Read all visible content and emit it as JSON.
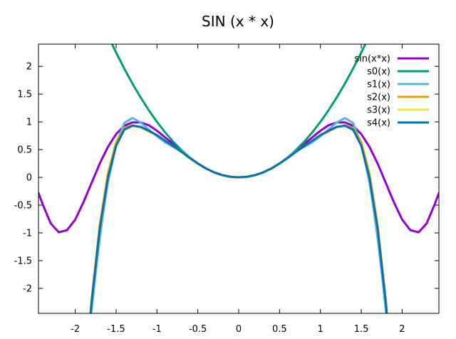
{
  "chart_data": {
    "type": "line",
    "title": "SIN (x * x)",
    "xlabel": "",
    "ylabel": "",
    "xlim": [
      -2.45,
      2.45
    ],
    "ylim": [
      -2.45,
      2.4
    ],
    "grid": false,
    "legend_position": "top-right",
    "x_ticks": [
      -2,
      -1.5,
      -1,
      -0.5,
      0,
      0.5,
      1,
      1.5,
      2
    ],
    "x_tick_labels": [
      "-2",
      "-1.5",
      "-1",
      "-0.5",
      "0",
      "0.5",
      "1",
      "1.5",
      "2"
    ],
    "y_ticks": [
      2,
      1.5,
      1,
      0.5,
      0,
      -0.5,
      -1,
      -1.5,
      -2
    ],
    "y_tick_labels": [
      "2",
      "1.5",
      "1",
      "0.5",
      "0",
      "-0.5",
      "-1",
      "-1.5",
      "-2"
    ],
    "series": [
      {
        "name": "sin(x*x)",
        "color": "#9400d3",
        "x": [
          -2.45,
          -2.4,
          -2.3,
          -2.2,
          -2.1,
          -2.0,
          -1.9,
          -1.8,
          -1.7,
          -1.6,
          -1.5,
          -1.4,
          -1.3,
          -1.2,
          -1.1,
          -1.0,
          -0.9,
          -0.8,
          -0.7,
          -0.6,
          -0.5,
          -0.4,
          -0.3,
          -0.2,
          -0.1,
          0,
          0.1,
          0.2,
          0.3,
          0.4,
          0.5,
          0.6,
          0.7,
          0.8,
          0.9,
          1.0,
          1.1,
          1.2,
          1.3,
          1.4,
          1.5,
          1.6,
          1.7,
          1.8,
          1.9,
          2.0,
          2.1,
          2.2,
          2.3,
          2.4,
          2.45
        ],
        "y": [
          -0.28,
          -0.48,
          -0.83,
          -0.99,
          -0.95,
          -0.76,
          -0.45,
          -0.1,
          0.25,
          0.55,
          0.78,
          0.93,
          0.99,
          0.99,
          0.94,
          0.84,
          0.72,
          0.6,
          0.48,
          0.35,
          0.25,
          0.16,
          0.09,
          0.04,
          0.01,
          0,
          0.01,
          0.04,
          0.09,
          0.16,
          0.25,
          0.35,
          0.48,
          0.6,
          0.72,
          0.84,
          0.94,
          0.99,
          0.99,
          0.93,
          0.78,
          0.55,
          0.25,
          -0.1,
          -0.45,
          -0.76,
          -0.95,
          -0.99,
          -0.83,
          -0.48,
          -0.28
        ]
      },
      {
        "name": "s0(x)",
        "color": "#009e73",
        "x": [
          -1.6,
          -1.55,
          -1.5,
          -1.4,
          -1.3,
          -1.2,
          -1.1,
          -1.0,
          -0.9,
          -0.8,
          -0.7,
          -0.6,
          -0.5,
          -0.4,
          -0.3,
          -0.2,
          -0.1,
          0,
          0.1,
          0.2,
          0.3,
          0.4,
          0.5,
          0.6,
          0.7,
          0.8,
          0.9,
          1.0,
          1.1,
          1.2,
          1.3,
          1.4,
          1.5,
          1.55,
          1.6
        ],
        "y": [
          2.56,
          2.4,
          2.25,
          1.96,
          1.69,
          1.44,
          1.21,
          1.0,
          0.81,
          0.64,
          0.49,
          0.36,
          0.25,
          0.16,
          0.09,
          0.04,
          0.01,
          0,
          0.01,
          0.04,
          0.09,
          0.16,
          0.25,
          0.36,
          0.49,
          0.64,
          0.81,
          1.0,
          1.21,
          1.44,
          1.69,
          1.96,
          2.25,
          2.4,
          2.56
        ]
      },
      {
        "name": "s1(x)",
        "color": "#56b4e9",
        "x": [
          -1.82,
          -1.8,
          -1.75,
          -1.7,
          -1.65,
          -1.6,
          -1.5,
          -1.4,
          -1.3,
          -1.2,
          -1.1,
          -1.0,
          -0.9,
          -0.8,
          -0.7,
          -0.6,
          -0.5,
          -0.4,
          -0.3,
          -0.2,
          -0.1,
          0,
          0.1,
          0.2,
          0.3,
          0.4,
          0.5,
          0.6,
          0.7,
          0.8,
          0.9,
          1.0,
          1.1,
          1.2,
          1.3,
          1.4,
          1.5,
          1.6,
          1.65,
          1.7,
          1.75,
          1.8,
          1.82
        ],
        "y": [
          -2.67,
          -2.4,
          -1.72,
          -1.1,
          -0.56,
          -0.09,
          0.6,
          0.98,
          1.07,
          0.99,
          0.86,
          0.74,
          0.63,
          0.55,
          0.47,
          0.36,
          0.25,
          0.16,
          0.09,
          0.04,
          0.01,
          0,
          0.01,
          0.04,
          0.09,
          0.16,
          0.25,
          0.36,
          0.47,
          0.55,
          0.63,
          0.74,
          0.86,
          0.99,
          1.07,
          0.98,
          0.6,
          -0.09,
          -0.56,
          -1.1,
          -1.72,
          -2.4,
          -2.67
        ]
      },
      {
        "name": "s2(x)",
        "color": "#e69f00",
        "x": [
          -1.83,
          -1.8,
          -1.7,
          -1.6,
          -1.5,
          -1.4,
          -1.3,
          -1.2,
          -1.1,
          -1.0,
          -0.9,
          -0.8,
          -0.7,
          -0.6,
          -0.5,
          -0.4,
          -0.3,
          -0.2,
          -0.1,
          0,
          0.1,
          0.2,
          0.3,
          0.4,
          0.5,
          0.6,
          0.7,
          0.8,
          0.9,
          1.0,
          1.1,
          1.2,
          1.3,
          1.4,
          1.5,
          1.6,
          1.7,
          1.8,
          1.83
        ],
        "y": [
          -2.7,
          -2.2,
          -0.85,
          0.07,
          0.63,
          0.89,
          0.94,
          0.9,
          0.83,
          0.76,
          0.66,
          0.56,
          0.46,
          0.35,
          0.25,
          0.16,
          0.09,
          0.04,
          0.01,
          0,
          0.01,
          0.04,
          0.09,
          0.16,
          0.25,
          0.35,
          0.46,
          0.56,
          0.66,
          0.76,
          0.83,
          0.9,
          0.94,
          0.89,
          0.63,
          0.07,
          -0.85,
          -2.2,
          -2.7
        ]
      },
      {
        "name": "s3(x)",
        "color": "#f0e442",
        "x": [
          -1.82,
          -1.8,
          -1.7,
          -1.6,
          -1.5,
          -1.4,
          -1.3,
          -1.2,
          -1.1,
          -1.0,
          -0.9,
          -0.8,
          -0.7,
          -0.6,
          -0.5,
          -0.4,
          -0.3,
          -0.2,
          -0.1,
          0,
          0.1,
          0.2,
          0.3,
          0.4,
          0.5,
          0.6,
          0.7,
          0.8,
          0.9,
          1.0,
          1.1,
          1.2,
          1.3,
          1.4,
          1.5,
          1.6,
          1.7,
          1.8,
          1.82
        ],
        "y": [
          -2.62,
          -2.25,
          -0.95,
          -0.02,
          0.57,
          0.86,
          0.93,
          0.9,
          0.84,
          0.76,
          0.66,
          0.56,
          0.46,
          0.35,
          0.25,
          0.16,
          0.09,
          0.04,
          0.01,
          0,
          0.01,
          0.04,
          0.09,
          0.16,
          0.25,
          0.35,
          0.46,
          0.56,
          0.66,
          0.76,
          0.84,
          0.9,
          0.93,
          0.86,
          0.57,
          -0.02,
          -0.95,
          -2.25,
          -2.62
        ]
      },
      {
        "name": "s4(x)",
        "color": "#0072b2",
        "x": [
          -1.82,
          -1.8,
          -1.7,
          -1.6,
          -1.5,
          -1.4,
          -1.3,
          -1.2,
          -1.1,
          -1.0,
          -0.9,
          -0.8,
          -0.7,
          -0.6,
          -0.5,
          -0.4,
          -0.3,
          -0.2,
          -0.1,
          0,
          0.1,
          0.2,
          0.3,
          0.4,
          0.5,
          0.6,
          0.7,
          0.8,
          0.9,
          1.0,
          1.1,
          1.2,
          1.3,
          1.4,
          1.5,
          1.6,
          1.7,
          1.8,
          1.82
        ],
        "y": [
          -2.6,
          -2.25,
          -0.93,
          -0.01,
          0.57,
          0.86,
          0.93,
          0.91,
          0.84,
          0.76,
          0.66,
          0.56,
          0.46,
          0.35,
          0.25,
          0.16,
          0.09,
          0.04,
          0.01,
          0,
          0.01,
          0.04,
          0.09,
          0.16,
          0.25,
          0.35,
          0.46,
          0.56,
          0.66,
          0.76,
          0.84,
          0.91,
          0.93,
          0.86,
          0.57,
          -0.01,
          -0.93,
          -2.25,
          -2.6
        ]
      }
    ]
  }
}
